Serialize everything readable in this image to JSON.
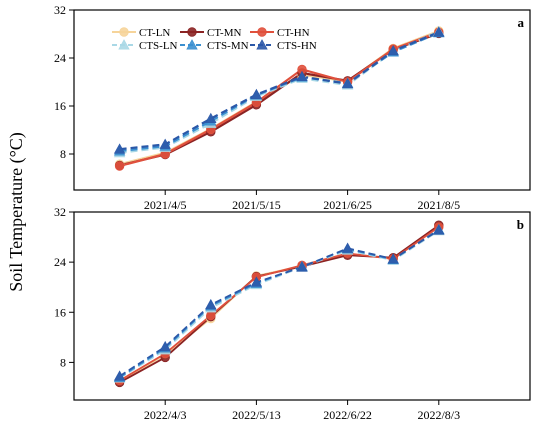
{
  "ylabel": "Soil Temperature (°C)",
  "legend": [
    {
      "name": "CT-LN",
      "color": "#f6d49a",
      "marker": "circle",
      "dash": false
    },
    {
      "name": "CT-MN",
      "color": "#8b2323",
      "marker": "circle",
      "dash": false
    },
    {
      "name": "CT-HN",
      "color": "#e0503c",
      "marker": "circle",
      "dash": false
    },
    {
      "name": "CTS-LN",
      "color": "#a9d8e6",
      "marker": "triangle",
      "dash": true
    },
    {
      "name": "CTS-MN",
      "color": "#3a8fd0",
      "marker": "triangle",
      "dash": true
    },
    {
      "name": "CTS-HN",
      "color": "#2b58a8",
      "marker": "triangle",
      "dash": true
    }
  ],
  "chart_data": [
    {
      "type": "line",
      "panel_label": "a",
      "ylim": [
        2,
        32
      ],
      "yticks": [
        8,
        16,
        24,
        32
      ],
      "xdomain": [
        0,
        10
      ],
      "x": [
        1,
        2,
        3,
        4,
        5,
        6,
        7,
        8
      ],
      "xticks": [
        2,
        4,
        6,
        8
      ],
      "xtick_labels": [
        "2021/4/5",
        "2021/5/15",
        "2021/6/25",
        "2021/8/5"
      ],
      "series": [
        {
          "name": "CT-LN",
          "values": [
            6.3,
            8.2,
            12.2,
            16.7,
            21.2,
            20.1,
            25.6,
            28.5
          ]
        },
        {
          "name": "CT-MN",
          "values": [
            6.1,
            7.9,
            11.7,
            16.2,
            21.5,
            20.2,
            25.4,
            28.1
          ]
        },
        {
          "name": "CT-HN",
          "values": [
            6.0,
            8.0,
            12.1,
            16.6,
            22.1,
            20.0,
            25.5,
            28.3
          ]
        },
        {
          "name": "CTS-LN",
          "values": [
            8.2,
            9.1,
            13.1,
            17.6,
            20.6,
            19.5,
            25.1,
            28.4
          ]
        },
        {
          "name": "CTS-MN",
          "values": [
            8.5,
            9.3,
            13.5,
            17.8,
            20.8,
            19.8,
            25.0,
            28.2
          ]
        },
        {
          "name": "CTS-HN",
          "values": [
            8.8,
            9.6,
            13.9,
            17.9,
            20.9,
            19.7,
            25.2,
            28.3
          ]
        }
      ]
    },
    {
      "type": "line",
      "panel_label": "b",
      "ylim": [
        2,
        32
      ],
      "yticks": [
        8,
        16,
        24,
        32
      ],
      "xdomain": [
        0,
        10
      ],
      "x": [
        1,
        2,
        3,
        4,
        5,
        6,
        7,
        8
      ],
      "xticks": [
        2,
        4,
        6,
        8
      ],
      "xtick_labels": [
        "2022/4/3",
        "2022/5/13",
        "2022/6/22",
        "2022/8/3"
      ],
      "series": [
        {
          "name": "CT-LN",
          "values": [
            5.0,
            9.2,
            15.0,
            21.8,
            23.4,
            25.3,
            24.6,
            29.8
          ]
        },
        {
          "name": "CT-MN",
          "values": [
            4.8,
            8.8,
            15.3,
            21.7,
            23.3,
            25.1,
            24.7,
            29.9
          ]
        },
        {
          "name": "CT-HN",
          "values": [
            5.1,
            9.4,
            15.5,
            21.6,
            23.5,
            25.4,
            24.5,
            29.6
          ]
        },
        {
          "name": "CTS-LN",
          "values": [
            5.5,
            10.0,
            16.7,
            20.4,
            23.2,
            25.9,
            24.3,
            29.0
          ]
        },
        {
          "name": "CTS-MN",
          "values": [
            5.6,
            10.3,
            17.0,
            20.6,
            23.3,
            26.1,
            24.4,
            29.2
          ]
        },
        {
          "name": "CTS-HN",
          "values": [
            5.8,
            10.5,
            17.2,
            20.8,
            23.2,
            26.2,
            24.5,
            29.1
          ]
        }
      ]
    }
  ]
}
